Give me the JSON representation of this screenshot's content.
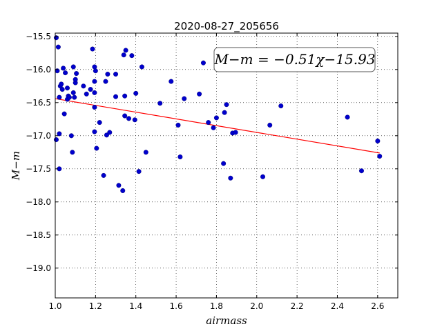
{
  "chart_data": {
    "type": "scatter",
    "title": "2020-08-27_205656",
    "xlabel": "airmass",
    "ylabel": "M−m",
    "xlim": [
      1.0,
      2.7
    ],
    "ylim": [
      -15.45,
      -19.45
    ],
    "y_inverted": true,
    "grid": true,
    "xticks": [
      1.0,
      1.2,
      1.4,
      1.6,
      1.8,
      2.0,
      2.2,
      2.4,
      2.6
    ],
    "xtick_labels": [
      "1.0",
      "1.2",
      "1.4",
      "1.6",
      "1.8",
      "2.0",
      "2.2",
      "2.4",
      "2.6"
    ],
    "yticks": [
      -15.5,
      -16.0,
      -16.5,
      -17.0,
      -17.5,
      -18.0,
      -18.5,
      -19.0
    ],
    "ytick_labels": [
      "−15.5",
      "−16.0",
      "−16.5",
      "−17.0",
      "−17.5",
      "−18.0",
      "−18.5",
      "−19.0"
    ],
    "annotation": "M−m = −0.51χ−15.93",
    "fit": {
      "slope": -0.51,
      "intercept": -15.93,
      "x_range": [
        1.0,
        2.61
      ],
      "color": "#ff0000"
    },
    "point_color": "#0000cc",
    "points": [
      [
        1.005,
        -15.52
      ],
      [
        1.015,
        -15.66
      ],
      [
        1.01,
        -16.02
      ],
      [
        1.005,
        -17.06
      ],
      [
        1.02,
        -16.42
      ],
      [
        1.025,
        -16.25
      ],
      [
        1.03,
        -16.22
      ],
      [
        1.035,
        -16.3
      ],
      [
        1.02,
        -16.97
      ],
      [
        1.02,
        -17.5
      ],
      [
        1.04,
        -15.98
      ],
      [
        1.05,
        -16.05
      ],
      [
        1.045,
        -16.67
      ],
      [
        1.06,
        -16.28
      ],
      [
        1.065,
        -16.4
      ],
      [
        1.06,
        -16.45
      ],
      [
        1.07,
        -16.42
      ],
      [
        1.08,
        -17.0
      ],
      [
        1.085,
        -17.25
      ],
      [
        1.09,
        -15.96
      ],
      [
        1.09,
        -16.35
      ],
      [
        1.1,
        -16.2
      ],
      [
        1.1,
        -16.15
      ],
      [
        1.095,
        -16.42
      ],
      [
        1.105,
        -16.06
      ],
      [
        1.14,
        -16.25
      ],
      [
        1.155,
        -16.37
      ],
      [
        1.175,
        -16.3
      ],
      [
        1.185,
        -15.69
      ],
      [
        1.195,
        -16.35
      ],
      [
        1.195,
        -16.18
      ],
      [
        1.195,
        -15.96
      ],
      [
        1.2,
        -16.02
      ],
      [
        1.195,
        -16.57
      ],
      [
        1.195,
        -16.94
      ],
      [
        1.205,
        -17.19
      ],
      [
        1.22,
        -16.8
      ],
      [
        1.24,
        -17.6
      ],
      [
        1.25,
        -16.18
      ],
      [
        1.26,
        -16.07
      ],
      [
        1.255,
        -16.99
      ],
      [
        1.27,
        -16.95
      ],
      [
        1.3,
        -16.07
      ],
      [
        1.3,
        -16.41
      ],
      [
        1.315,
        -17.75
      ],
      [
        1.335,
        -17.83
      ],
      [
        1.34,
        -15.78
      ],
      [
        1.35,
        -15.71
      ],
      [
        1.345,
        -16.4
      ],
      [
        1.345,
        -16.7
      ],
      [
        1.365,
        -16.74
      ],
      [
        1.38,
        -15.79
      ],
      [
        1.395,
        -16.76
      ],
      [
        1.4,
        -16.36
      ],
      [
        1.415,
        -17.54
      ],
      [
        1.43,
        -15.96
      ],
      [
        1.45,
        -17.25
      ],
      [
        1.52,
        -16.51
      ],
      [
        1.575,
        -16.18
      ],
      [
        1.61,
        -16.84
      ],
      [
        1.62,
        -17.32
      ],
      [
        1.64,
        -16.44
      ],
      [
        1.715,
        -16.37
      ],
      [
        1.735,
        -15.9
      ],
      [
        1.76,
        -16.8
      ],
      [
        1.785,
        -16.88
      ],
      [
        1.8,
        -16.73
      ],
      [
        1.835,
        -17.42
      ],
      [
        1.84,
        -16.65
      ],
      [
        1.85,
        -16.53
      ],
      [
        1.87,
        -17.64
      ],
      [
        1.88,
        -16.96
      ],
      [
        1.895,
        -16.95
      ],
      [
        2.03,
        -17.62
      ],
      [
        2.065,
        -16.84
      ],
      [
        2.12,
        -16.55
      ],
      [
        2.45,
        -16.72
      ],
      [
        2.52,
        -17.53
      ],
      [
        2.6,
        -17.08
      ],
      [
        2.61,
        -17.31
      ]
    ]
  }
}
